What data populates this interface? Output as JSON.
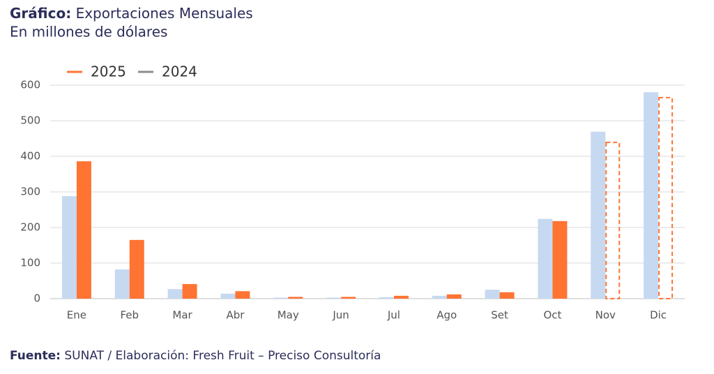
{
  "chart_data": {
    "type": "bar",
    "title_label": "Gráfico:",
    "title": "Exportaciones Mensuales",
    "subtitle": "En millones de dólares",
    "source_label": "Fuente:",
    "source": "SUNAT / Elaboración: Fresh Fruit – Preciso Consultoría",
    "categories": [
      "Ene",
      "Feb",
      "Mar",
      "Abr",
      "May",
      "Jun",
      "Jul",
      "Ago",
      "Set",
      "Oct",
      "Nov",
      "Dic"
    ],
    "series": [
      {
        "name": "2025",
        "color": "#ff7433",
        "legend_color": "#ff7433",
        "dashed_indices": [
          10,
          11
        ],
        "values": [
          386,
          165,
          41,
          21,
          5,
          5,
          8,
          12,
          18,
          218,
          441,
          567
        ]
      },
      {
        "name": "2024",
        "color": "#c6d9f1",
        "legend_color": "#8c8c8c",
        "values": [
          288,
          82,
          27,
          14,
          3,
          3,
          4,
          8,
          25,
          224,
          469,
          580
        ]
      }
    ],
    "bar_order": [
      1,
      0
    ],
    "ylim": [
      0,
      600
    ],
    "yticks": [
      0,
      100,
      200,
      300,
      400,
      500,
      600
    ],
    "grid": true
  }
}
